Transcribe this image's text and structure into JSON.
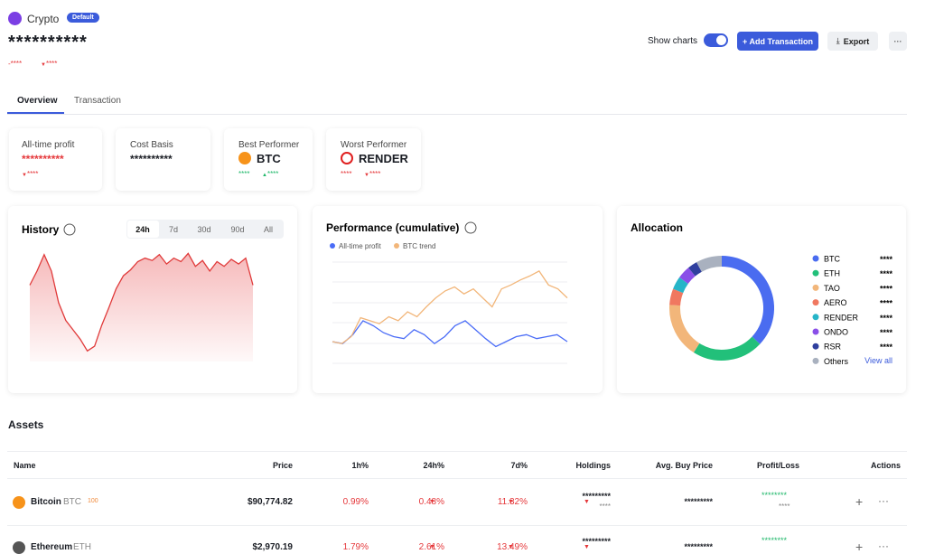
{
  "header": {
    "title": "Crypto",
    "badge": "Default",
    "balance": "**********",
    "change_amount": "-****",
    "change_pct": "****"
  },
  "controls": {
    "show_charts": "Show charts",
    "add": "+ Add Transaction",
    "export": "Export",
    "more": "···"
  },
  "tabs": [
    "Overview",
    "Transaction"
  ],
  "stats": [
    {
      "label": "All-time profit",
      "value": "**********",
      "sub": [
        "****"
      ]
    },
    {
      "label": "Cost Basis",
      "value": "**********"
    },
    {
      "label": "Best Performer",
      "value": "BTC",
      "sub": [
        "****",
        "****"
      ]
    },
    {
      "label": "Worst Performer",
      "value": "RENDER",
      "sub": [
        "****",
        "****"
      ]
    }
  ],
  "history": {
    "title": "History",
    "ranges": [
      "24h",
      "7d",
      "30d",
      "90d",
      "All"
    ],
    "values": [
      65,
      77,
      91,
      77,
      50,
      35,
      27,
      19,
      9,
      13,
      31,
      46,
      62,
      73,
      78,
      85,
      88,
      86,
      91,
      83,
      88,
      85,
      92,
      81,
      86,
      77,
      85,
      81,
      87,
      83,
      88,
      65
    ]
  },
  "performance": {
    "title": "Performance (cumulative)",
    "series": [
      {
        "name": "All-time profit",
        "color": "#4a6cf7",
        "values": [
          20,
          18,
          27,
          41,
          36,
          29,
          25,
          23,
          32,
          27,
          18,
          25,
          36,
          41,
          32,
          23,
          15,
          20,
          25,
          27,
          23,
          25,
          27,
          20
        ]
      },
      {
        "name": "BTC trend",
        "color": "#f2b67a",
        "values": [
          20,
          18,
          25,
          44,
          41,
          38,
          45,
          41,
          50,
          45,
          55,
          64,
          71,
          75,
          68,
          73,
          64,
          55,
          73,
          77,
          82,
          86,
          91,
          77,
          73,
          64
        ]
      }
    ]
  },
  "allocation": {
    "title": "Allocation",
    "link": "View all",
    "items": [
      {
        "name": "BTC",
        "color": "#4a6cf0",
        "value": 37,
        "amount": "****"
      },
      {
        "name": "ETH",
        "color": "#22c07a",
        "value": 22,
        "amount": "****"
      },
      {
        "name": "TAO",
        "color": "#f2b67a",
        "value": 17,
        "amount": "****"
      },
      {
        "name": "AERO",
        "color": "#f07860",
        "value": 5,
        "amount": "****"
      },
      {
        "name": "RENDER",
        "color": "#26b5c8",
        "value": 4,
        "amount": "****"
      },
      {
        "name": "ONDO",
        "color": "#8a4fe8",
        "value": 4,
        "amount": "****"
      },
      {
        "name": "RSR",
        "color": "#2f3f9e",
        "value": 3,
        "amount": "****"
      },
      {
        "name": "Others",
        "color": "#a9b1bf",
        "value": 8,
        "amount": "****"
      }
    ]
  },
  "assets": {
    "title": "Assets",
    "columns": [
      "Name",
      "Price",
      "1h%",
      "24h%",
      "7d%",
      "Holdings",
      "Avg. Buy Price",
      "Profit/Loss",
      "Actions"
    ],
    "rows": [
      {
        "name": "Bitcoin",
        "symbol": "BTC",
        "rank": "100",
        "price": "$90,774.82",
        "h1": "0.99%",
        "h24": "0.48%",
        "d7": "11.32%",
        "holdings": "*********",
        "holdings_sub": "****",
        "avg": "*********",
        "pl": "********",
        "pl_sub": "****"
      },
      {
        "name": "Ethereum",
        "symbol": "ETH",
        "price": "$2,970.19",
        "h1": "1.79%",
        "h24": "2.61%",
        "d7": "13.49%",
        "holdings": "*********",
        "avg": "*********",
        "pl": "********"
      }
    ]
  }
}
